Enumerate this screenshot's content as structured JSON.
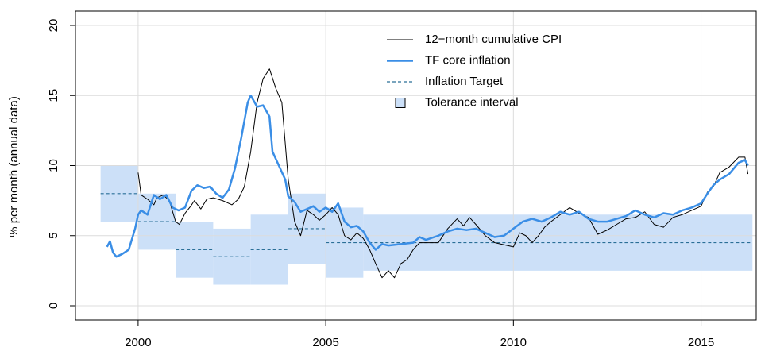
{
  "chart_data": {
    "type": "line",
    "y_label": "% per month (annual data)",
    "xlim": [
      1998.33,
      2016.47
    ],
    "ylim": [
      -1.02,
      21.02
    ],
    "xticks": [
      2000,
      2005,
      2010,
      2015
    ],
    "yticks": [
      0,
      5,
      10,
      15,
      20
    ],
    "grid": true,
    "legend": "top",
    "periods": {
      "start": [
        1999,
        2000,
        2001,
        2002,
        2003,
        2004,
        2005,
        2006
      ],
      "end": [
        2000,
        2001,
        2002,
        2003,
        2004,
        2005,
        2006,
        2016.37
      ]
    },
    "tolerance": {
      "name": "Tolerance interval",
      "color": "#cce0f8",
      "low": [
        6,
        4,
        2,
        1.5,
        1.5,
        3,
        2,
        2.5
      ],
      "high": [
        10,
        8,
        6,
        5.5,
        6.5,
        8,
        7,
        6.5
      ]
    },
    "target": {
      "name": "Inflation Target",
      "color": "#2a6f97",
      "values": [
        8,
        6,
        4,
        3.5,
        4,
        5.5,
        4.5,
        4.5
      ]
    },
    "series": [
      {
        "name": "12−month cumulative CPI",
        "color": "#000000",
        "width": 1,
        "x": [
          2000.0,
          2000.08,
          2000.25,
          2000.42,
          2000.5,
          2000.67,
          2000.83,
          2001.0,
          2001.1,
          2001.25,
          2001.4,
          2001.5,
          2001.67,
          2001.83,
          2002.0,
          2002.25,
          2002.5,
          2002.67,
          2002.83,
          2003.0,
          2003.17,
          2003.33,
          2003.5,
          2003.67,
          2003.83,
          2004.0,
          2004.17,
          2004.33,
          2004.5,
          2004.67,
          2004.83,
          2005.0,
          2005.17,
          2005.33,
          2005.5,
          2005.67,
          2005.83,
          2006.0,
          2006.17,
          2006.33,
          2006.5,
          2006.67,
          2006.83,
          2007.0,
          2007.17,
          2007.33,
          2007.5,
          2007.67,
          2008.0,
          2008.25,
          2008.5,
          2008.67,
          2008.83,
          2009.0,
          2009.25,
          2009.5,
          2009.67,
          2010.0,
          2010.17,
          2010.33,
          2010.5,
          2010.67,
          2010.83,
          2011.0,
          2011.25,
          2011.5,
          2011.75,
          2012.0,
          2012.25,
          2012.5,
          2012.75,
          2013.0,
          2013.25,
          2013.5,
          2013.75,
          2014.0,
          2014.25,
          2014.5,
          2014.75,
          2015.0,
          2015.17,
          2015.33,
          2015.5,
          2015.75,
          2016.0,
          2016.17,
          2016.25
        ],
        "values": [
          9.5,
          7.9,
          7.6,
          7.2,
          7.7,
          7.9,
          7.5,
          6.0,
          5.8,
          6.6,
          7.1,
          7.5,
          6.9,
          7.6,
          7.7,
          7.5,
          7.2,
          7.6,
          8.5,
          11.0,
          14.5,
          16.2,
          16.9,
          15.5,
          14.5,
          9.0,
          6.0,
          5.0,
          6.8,
          6.5,
          6.1,
          6.5,
          7.0,
          6.5,
          5.0,
          4.7,
          5.2,
          4.8,
          4.0,
          3.0,
          2.0,
          2.5,
          2.0,
          3.0,
          3.3,
          4.0,
          4.5,
          4.5,
          4.5,
          5.5,
          6.2,
          5.7,
          6.3,
          5.8,
          5.0,
          4.5,
          4.4,
          4.2,
          5.2,
          5.0,
          4.5,
          5.0,
          5.6,
          6.0,
          6.5,
          7.0,
          6.6,
          6.3,
          5.1,
          5.4,
          5.8,
          6.2,
          6.3,
          6.7,
          5.8,
          5.6,
          6.3,
          6.5,
          6.8,
          7.1,
          8.1,
          8.5,
          9.5,
          9.9,
          10.6,
          10.6,
          9.4
        ]
      },
      {
        "name": "TF core inflation",
        "color": "#3a8ee6",
        "width": 2.5,
        "x": [
          1999.17,
          1999.25,
          1999.33,
          1999.42,
          1999.58,
          1999.75,
          1999.92,
          2000.0,
          2000.08,
          2000.25,
          2000.42,
          2000.58,
          2000.75,
          2000.92,
          2001.08,
          2001.25,
          2001.42,
          2001.58,
          2001.75,
          2001.92,
          2002.08,
          2002.25,
          2002.42,
          2002.58,
          2002.75,
          2002.92,
          2003.0,
          2003.17,
          2003.33,
          2003.5,
          2003.58,
          2003.75,
          2003.92,
          2004.0,
          2004.17,
          2004.33,
          2004.5,
          2004.67,
          2004.83,
          2005.0,
          2005.17,
          2005.33,
          2005.5,
          2005.67,
          2005.83,
          2006.0,
          2006.17,
          2006.33,
          2006.5,
          2006.67,
          2007.0,
          2007.33,
          2007.5,
          2007.67,
          2008.0,
          2008.25,
          2008.5,
          2008.75,
          2009.0,
          2009.25,
          2009.5,
          2009.75,
          2010.0,
          2010.25,
          2010.5,
          2010.75,
          2011.0,
          2011.25,
          2011.5,
          2011.75,
          2012.0,
          2012.25,
          2012.5,
          2012.75,
          2013.0,
          2013.25,
          2013.5,
          2013.75,
          2014.0,
          2014.25,
          2014.5,
          2014.75,
          2015.0,
          2015.17,
          2015.33,
          2015.5,
          2015.75,
          2016.0,
          2016.17,
          2016.25
        ],
        "values": [
          4.2,
          4.6,
          3.8,
          3.5,
          3.7,
          4.0,
          5.5,
          6.5,
          6.8,
          6.5,
          7.9,
          7.6,
          7.9,
          7.0,
          6.8,
          7.0,
          8.2,
          8.6,
          8.4,
          8.5,
          8.0,
          7.7,
          8.3,
          9.8,
          12.0,
          14.5,
          15.0,
          14.2,
          14.3,
          13.5,
          11.0,
          10.0,
          9.0,
          7.8,
          7.4,
          6.7,
          6.9,
          7.1,
          6.7,
          7.0,
          6.7,
          7.3,
          6.0,
          5.6,
          5.7,
          5.3,
          4.5,
          4.0,
          4.4,
          4.3,
          4.4,
          4.5,
          4.9,
          4.7,
          5.0,
          5.3,
          5.5,
          5.4,
          5.5,
          5.2,
          4.9,
          5.0,
          5.5,
          6.0,
          6.2,
          6.0,
          6.3,
          6.7,
          6.5,
          6.7,
          6.2,
          6.0,
          6.0,
          6.2,
          6.4,
          6.8,
          6.5,
          6.3,
          6.6,
          6.5,
          6.8,
          7.0,
          7.3,
          8.0,
          8.6,
          9.0,
          9.4,
          10.2,
          10.4,
          10.0
        ]
      }
    ]
  }
}
